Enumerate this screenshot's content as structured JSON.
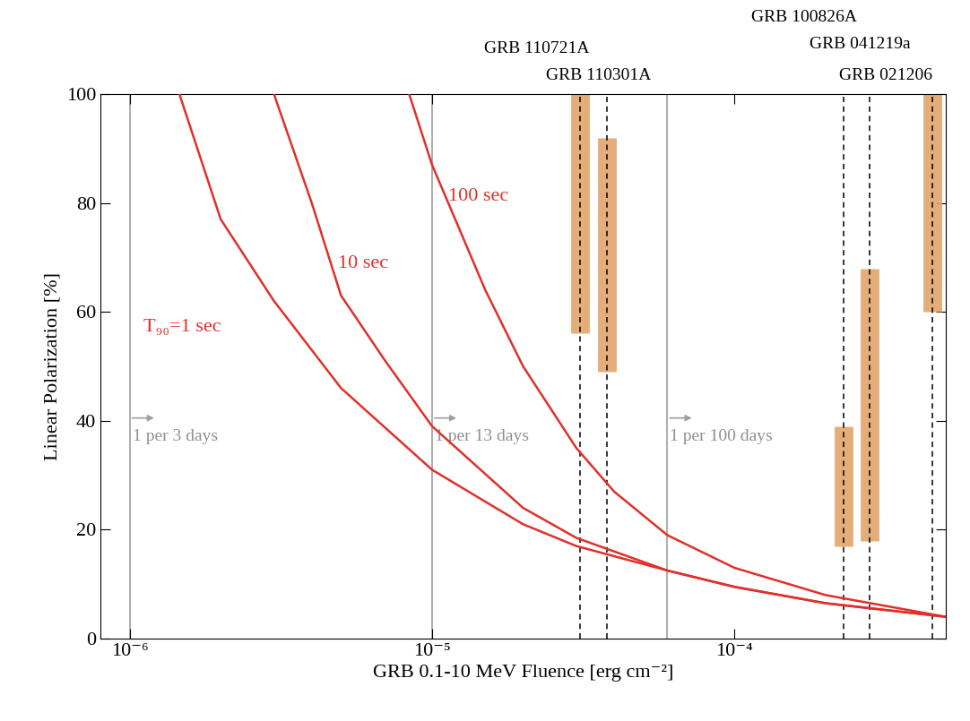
{
  "chart_data": {
    "type": "line",
    "x_label": "GRB 0.1-10 MeV Fluence [erg cm⁻²]",
    "y_label": "Linear Polarization [%]",
    "log": "x",
    "xlim": [
      8e-07,
      0.0005
    ],
    "ylim": [
      0,
      100
    ],
    "xticks": [
      {
        "value": 1e-06,
        "label": "10⁻⁶"
      },
      {
        "value": 1e-05,
        "label": "10⁻⁵"
      },
      {
        "value": 0.0001,
        "label": "10⁻⁴"
      }
    ],
    "yticks": [
      0,
      20,
      40,
      60,
      80,
      100
    ],
    "series": [
      {
        "name": "T₉₀=1 sec",
        "color": "#e0302a",
        "x": [
          1.46e-06,
          2e-06,
          3e-06,
          5e-06,
          1e-05,
          2e-05,
          3e-05,
          6e-05,
          0.0001,
          0.0002,
          0.0005
        ],
        "values": [
          100,
          77,
          62,
          46,
          31,
          21,
          17,
          12.5,
          9.5,
          6.5,
          4
        ]
      },
      {
        "name": "10 sec",
        "color": "#e0302a",
        "x": [
          3e-06,
          4e-06,
          5e-06,
          7e-06,
          1e-05,
          2e-05,
          3e-05,
          6e-05,
          0.0001,
          0.0002,
          0.0005
        ],
        "values": [
          100,
          80,
          63,
          51,
          39,
          24,
          18.5,
          12.5,
          9.5,
          6.5,
          4
        ]
      },
      {
        "name": "100 sec",
        "color": "#e0302a",
        "x": [
          8.4e-06,
          1e-05,
          1.5e-05,
          2e-05,
          3e-05,
          4e-05,
          6e-05,
          0.0001,
          0.0002,
          0.0005
        ],
        "values": [
          100,
          87,
          64,
          50,
          35,
          27,
          19,
          13,
          8,
          4
        ]
      }
    ],
    "grbs": [
      {
        "name": "GRB 110721A",
        "x": 3.09e-05,
        "low": 56,
        "high": 100
      },
      {
        "name": "GRB 110301A",
        "x": 3.8e-05,
        "low": 49,
        "high": 92
      },
      {
        "name": "GRB 100826A",
        "x": 0.000229,
        "low": 17,
        "high": 39
      },
      {
        "name": "GRB 041219a",
        "x": 0.00028,
        "low": 18,
        "high": 68
      },
      {
        "name": "GRB 021206",
        "x": 0.00045,
        "low": 60,
        "high": 100
      }
    ],
    "grb_color": "#e3a46b",
    "rates": [
      {
        "x": 1e-06,
        "label": "1 per 3 days"
      },
      {
        "x": 1e-05,
        "label": "1 per 13 days"
      },
      {
        "x": 6e-05,
        "label": "1 per 100 days"
      }
    ]
  }
}
